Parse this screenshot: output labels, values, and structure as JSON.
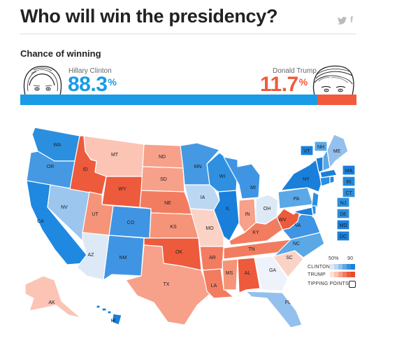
{
  "header": {
    "title": "Who will win the presidency?"
  },
  "share": {
    "twitter_icon": "twitter-icon",
    "facebook_icon": "facebook-icon",
    "facebook_glyph": "f"
  },
  "forecast": {
    "label": "Chance of winning",
    "clinton": {
      "name": "Hillary Clinton",
      "value": "88.3",
      "unit": "%",
      "probability": 0.883,
      "color": "#1a9be6"
    },
    "trump": {
      "name": "Donald Trump",
      "value": "11.7",
      "unit": "%",
      "probability": 0.117,
      "color": "#f25a3c"
    }
  },
  "legend": {
    "scale_mid": "50%",
    "scale_max": "90",
    "clinton_label": "CLINTON",
    "trump_label": "TRUMP",
    "tipping_label": "TIPPING POINTS",
    "clinton_ramp": [
      "#dde9f7",
      "#bcd7f2",
      "#93c0ec",
      "#5aa8e6",
      "#2f90e0",
      "#1a7fdb"
    ],
    "trump_ramp": [
      "#fde2da",
      "#fbc4b4",
      "#f7a08a",
      "#f27c60",
      "#ee5a3c",
      "#e84a2a"
    ]
  },
  "map": {
    "states": [
      {
        "code": "WA",
        "color": "#2b8fdf"
      },
      {
        "code": "OR",
        "color": "#4599e3"
      },
      {
        "code": "CA",
        "color": "#1f88e0"
      },
      {
        "code": "NV",
        "color": "#9dc6ee"
      },
      {
        "code": "ID",
        "color": "#ee5a3c"
      },
      {
        "code": "MT",
        "color": "#fbc4b4"
      },
      {
        "code": "WY",
        "color": "#ee5a3c"
      },
      {
        "code": "UT",
        "color": "#f59478"
      },
      {
        "code": "AZ",
        "color": "#dde9f7"
      },
      {
        "code": "CO",
        "color": "#3f95e3"
      },
      {
        "code": "NM",
        "color": "#3f95e3"
      },
      {
        "code": "AK",
        "color": "#fbc4b4"
      },
      {
        "code": "HI",
        "color": "#1a7fdb"
      },
      {
        "code": "ND",
        "color": "#f7a08a"
      },
      {
        "code": "SD",
        "color": "#f7a08a"
      },
      {
        "code": "NE",
        "color": "#f27c60"
      },
      {
        "code": "KS",
        "color": "#f59478"
      },
      {
        "code": "OK",
        "color": "#ee5a3c"
      },
      {
        "code": "TX",
        "color": "#f7a08a"
      },
      {
        "code": "MN",
        "color": "#4599e3"
      },
      {
        "code": "IA",
        "color": "#bcd7f2"
      },
      {
        "code": "MO",
        "color": "#fbd3c6"
      },
      {
        "code": "AR",
        "color": "#f27c60"
      },
      {
        "code": "LA",
        "color": "#f27c60"
      },
      {
        "code": "WI",
        "color": "#2f90e0"
      },
      {
        "code": "IL",
        "color": "#1a7fdb"
      },
      {
        "code": "MI",
        "color": "#3f95e3"
      },
      {
        "code": "IN",
        "color": "#f7a08a"
      },
      {
        "code": "OH",
        "color": "#dde9f7"
      },
      {
        "code": "KY",
        "color": "#f27c60"
      },
      {
        "code": "TN",
        "color": "#f27c60"
      },
      {
        "code": "MS",
        "color": "#f59478"
      },
      {
        "code": "AL",
        "color": "#ee5a3c"
      },
      {
        "code": "GA",
        "color": "#eef3fb"
      },
      {
        "code": "FL",
        "color": "#93c0ec"
      },
      {
        "code": "SC",
        "color": "#fbd3c6"
      },
      {
        "code": "NC",
        "color": "#5aa8e6"
      },
      {
        "code": "VA",
        "color": "#3f95e3"
      },
      {
        "code": "WV",
        "color": "#ee5a3c"
      },
      {
        "code": "PA",
        "color": "#5aa8e6"
      },
      {
        "code": "NY",
        "color": "#1a7fdb"
      },
      {
        "code": "VT",
        "color": "#1a7fdb"
      },
      {
        "code": "NH",
        "color": "#5aa8e6"
      },
      {
        "code": "ME",
        "color": "#93c0ec"
      },
      {
        "code": "MA",
        "color": "#1a7fdb"
      },
      {
        "code": "RI",
        "color": "#1f88e0"
      },
      {
        "code": "CT",
        "color": "#2b8fdf"
      },
      {
        "code": "NJ",
        "color": "#2b8fdf"
      },
      {
        "code": "DE",
        "color": "#2b8fdf"
      },
      {
        "code": "MD",
        "color": "#1a7fdb"
      },
      {
        "code": "DC",
        "color": "#1a7fdb"
      }
    ]
  }
}
